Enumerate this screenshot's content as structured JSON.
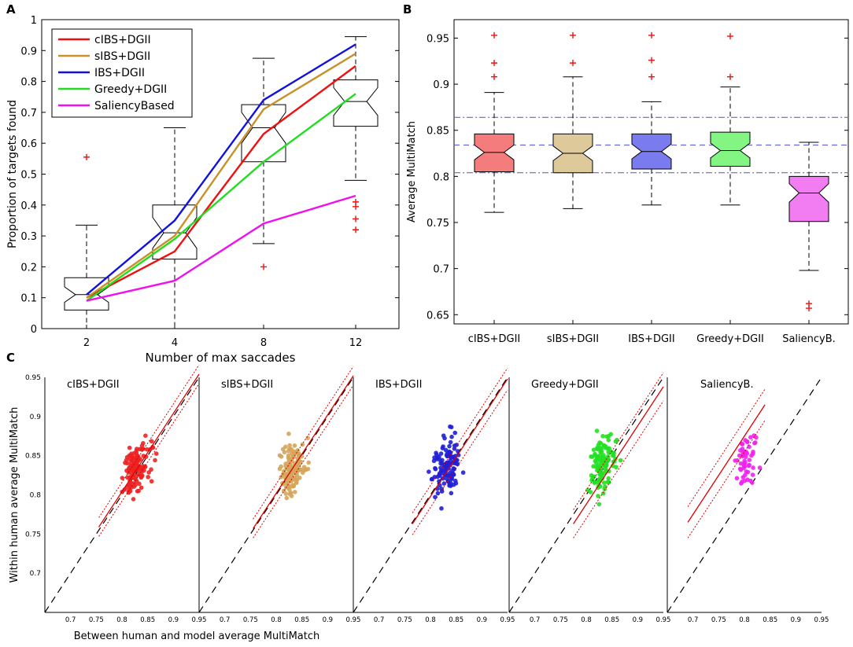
{
  "panel_labels": {
    "a": "A",
    "b": "B",
    "c": "C"
  },
  "chart_data": [
    {
      "panel": "A",
      "type": "line",
      "xlabel": "Number of max saccades",
      "ylabel": "Proportion of targets found",
      "categories": [
        "2",
        "4",
        "8",
        "12"
      ],
      "ylim": [
        0,
        1
      ],
      "yticks": [
        "0",
        "0.1",
        "0.2",
        "0.3",
        "0.4",
        "0.5",
        "0.6",
        "0.7",
        "0.8",
        "0.9",
        "1"
      ],
      "legend_position": "top-left",
      "series": [
        {
          "name": "cIBS+DGII",
          "color": "#ee1111",
          "values": [
            0.1,
            0.25,
            0.63,
            0.85
          ]
        },
        {
          "name": "sIBS+DGII",
          "color": "#c8922a",
          "values": [
            0.1,
            0.3,
            0.71,
            0.89
          ]
        },
        {
          "name": "IBS+DGII",
          "color": "#1111dd",
          "values": [
            0.11,
            0.35,
            0.74,
            0.92
          ]
        },
        {
          "name": "Greedy+DGII",
          "color": "#22dd22",
          "values": [
            0.09,
            0.29,
            0.54,
            0.76
          ]
        },
        {
          "name": "SaliencyBased",
          "color": "#ee11ee",
          "values": [
            0.09,
            0.155,
            0.34,
            0.43
          ]
        }
      ],
      "boxes": [
        {
          "category": "2",
          "q1": 0.06,
          "median": 0.11,
          "q3": 0.165,
          "wlow": 0.0,
          "whigh": 0.335,
          "notch": [
            0.085,
            0.135
          ],
          "outliers": [
            0.555
          ]
        },
        {
          "category": "4",
          "q1": 0.225,
          "median": 0.31,
          "q3": 0.4,
          "wlow": 0.0,
          "whigh": 0.65,
          "notch": [
            0.26,
            0.36
          ],
          "outliers": []
        },
        {
          "category": "8",
          "q1": 0.54,
          "median": 0.65,
          "q3": 0.725,
          "wlow": 0.275,
          "whigh": 0.875,
          "notch": [
            0.6,
            0.7
          ],
          "outliers": [
            0.2
          ]
        },
        {
          "category": "12",
          "q1": 0.655,
          "median": 0.735,
          "q3": 0.805,
          "wlow": 0.48,
          "whigh": 0.945,
          "notch": [
            0.69,
            0.78
          ],
          "outliers": [
            0.32,
            0.355,
            0.395,
            0.41
          ]
        }
      ]
    },
    {
      "panel": "B",
      "type": "box",
      "ylabel": "Average MultiMatch",
      "categories": [
        "cIBS+DGII",
        "sIBS+DGII",
        "IBS+DGII",
        "Greedy+DGII",
        "SaliencyB."
      ],
      "ylim": [
        0.64,
        0.97
      ],
      "yticks": [
        "0.65",
        "0.7",
        "0.75",
        "0.8",
        "0.85",
        "0.9",
        "0.95"
      ],
      "reference_lines": {
        "mean": 0.834,
        "upper": 0.864,
        "lower": 0.804
      },
      "boxes": [
        {
          "name": "cIBS+DGII",
          "color": "#f47c7c",
          "q1": 0.805,
          "median": 0.826,
          "q3": 0.846,
          "wlow": 0.761,
          "whigh": 0.891,
          "notch": [
            0.818,
            0.834
          ],
          "outliers": [
            0.908,
            0.923,
            0.953
          ]
        },
        {
          "name": "sIBS+DGII",
          "color": "#dec99b",
          "q1": 0.804,
          "median": 0.825,
          "q3": 0.846,
          "wlow": 0.765,
          "whigh": 0.908,
          "notch": [
            0.817,
            0.833
          ],
          "outliers": [
            0.923,
            0.953
          ]
        },
        {
          "name": "IBS+DGII",
          "color": "#7b7bf0",
          "q1": 0.808,
          "median": 0.827,
          "q3": 0.846,
          "wlow": 0.769,
          "whigh": 0.881,
          "notch": [
            0.819,
            0.835
          ],
          "outliers": [
            0.908,
            0.926,
            0.953
          ]
        },
        {
          "name": "Greedy+DGII",
          "color": "#82f582",
          "q1": 0.811,
          "median": 0.828,
          "q3": 0.848,
          "wlow": 0.769,
          "whigh": 0.897,
          "notch": [
            0.82,
            0.836
          ],
          "outliers": [
            0.908,
            0.952
          ]
        },
        {
          "name": "SaliencyB.",
          "color": "#f27cf2",
          "q1": 0.751,
          "median": 0.782,
          "q3": 0.8,
          "wlow": 0.698,
          "whigh": 0.837,
          "notch": [
            0.772,
            0.792
          ],
          "outliers": [
            0.657,
            0.662
          ]
        }
      ]
    },
    {
      "panel": "C",
      "type": "scatter",
      "xlabel": "Between human and model average MultiMatch",
      "ylabel": "Within human average MultiMatch",
      "xlim": [
        0.65,
        0.95
      ],
      "ylim": [
        0.65,
        0.95
      ],
      "xticks": [
        "0.7",
        "0.75",
        "0.8",
        "0.85",
        "0.9",
        "0.95"
      ],
      "yticks": [
        "0.7",
        "0.75",
        "0.8",
        "0.85",
        "0.9",
        "0.95"
      ],
      "identity_line": true,
      "subplots": [
        {
          "name": "cIBS+DGII",
          "color": "#ee2222",
          "fit": {
            "slope": 1.0,
            "intercept": 0.004,
            "band": 0.012,
            "x_range": [
              0.755,
              0.95
            ]
          }
        },
        {
          "name": "sIBS+DGII",
          "color": "#d4a55a",
          "fit": {
            "slope": 1.0,
            "intercept": 0.002,
            "band": 0.012,
            "x_range": [
              0.755,
              0.95
            ]
          }
        },
        {
          "name": "IBS+DGII",
          "color": "#1f1fd6",
          "fit": {
            "slope": 1.0,
            "intercept": -0.002,
            "band": 0.014,
            "x_range": [
              0.765,
              0.95
            ]
          }
        },
        {
          "name": "Greedy+DGII",
          "color": "#22e022",
          "fit": {
            "slope": 1.0,
            "intercept": -0.012,
            "band": 0.018,
            "x_range": [
              0.775,
              0.95
            ]
          }
        },
        {
          "name": "SaliencyB.",
          "color": "#ee22ee",
          "fit": {
            "slope": 1.0,
            "intercept": 0.075,
            "band": 0.02,
            "x_range": [
              0.69,
              0.84
            ]
          }
        }
      ]
    }
  ]
}
